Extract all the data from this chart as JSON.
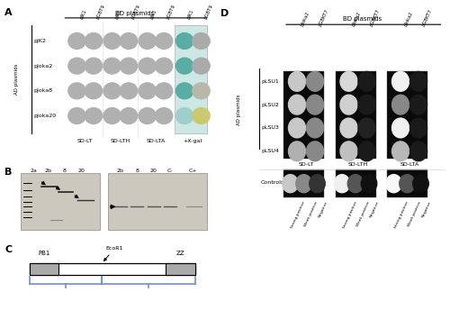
{
  "fig_width": 5.0,
  "fig_height": 3.55,
  "bg_color": "#ffffff",
  "panel_A": {
    "label": "A",
    "bd_label": "BD plasmids",
    "bd_cols": [
      "pJK1",
      "pGBT9",
      "pJK1",
      "pGBT9",
      "pJK1",
      "pGBT9",
      "pJK1",
      "pGBT9"
    ],
    "ad_label": "AD plasmids",
    "ad_rows": [
      "pJK2",
      "pJoka2",
      "pJoka8",
      "pJoka20"
    ],
    "conditions": [
      "SD-LT",
      "SD-LTH",
      "SD-LTA",
      "+X-gal"
    ],
    "dot_color_normal": "#b0b0b0",
    "xgal_bg": "#cde8e4",
    "xgal_col1_colors": [
      "#5aada4",
      "#5aada4",
      "#5aada4",
      "#9fcfca"
    ],
    "xgal_col2_colors": [
      "#aaaaaa",
      "#aaaaaa",
      "#b8b8a8",
      "#ccc870"
    ]
  },
  "panel_B": {
    "label": "B",
    "left_lanes": [
      "2a",
      "2b",
      "8",
      "20"
    ],
    "right_lanes": [
      "2b",
      "8",
      "20",
      "C-",
      "C+"
    ],
    "left_bg": "#cdc8be",
    "right_bg": "#cdc8be"
  },
  "panel_C": {
    "label": "C",
    "pb1_label": "PB1",
    "zz_label": "ZZ",
    "ecor1_label": "EcoR1",
    "domain_color": "#aaaaaa",
    "brace_color": "#7090c8"
  },
  "panel_D": {
    "label": "D",
    "bd_label": "BD plasmids",
    "bd_cols": [
      "pJoka2",
      "pGBKT7",
      "pJoka2",
      "pGBKT7",
      "pJoka2",
      "pGBKT7"
    ],
    "ad_label": "AD plasmids",
    "ad_rows": [
      "pLSU1",
      "pLSU2",
      "pLSU3",
      "pLSU4"
    ],
    "conditions": [
      "SD-LT",
      "SD-LTH",
      "SD-LTA"
    ],
    "controls_label": "Controls",
    "control_labels": [
      "Strong positive",
      "Weak positive",
      "Negative",
      "Strong positive",
      "Weak positive",
      "Negative",
      "Strong positive",
      "Weak positive",
      "Negative"
    ],
    "img_bg": "#0a0a0a",
    "lt_dots": [
      [
        "#c8c8c8",
        "#888888"
      ],
      [
        "#c8c8c8",
        "#888888"
      ],
      [
        "#c8c8c8",
        "#888888"
      ],
      [
        "#b0b0b0",
        "#888888"
      ]
    ],
    "lth_dots": [
      [
        "#d8d8d8",
        "#1a1a1a"
      ],
      [
        "#d0d0d0",
        "#1a1a1a"
      ],
      [
        "#d0d0d0",
        "#222222"
      ],
      [
        "#c0c0c0",
        "#1a1a1a"
      ]
    ],
    "lta_dots": [
      [
        "#f0f0f0",
        "#1a1a1a"
      ],
      [
        "#888888",
        "#1a1a1a"
      ],
      [
        "#f0f0f0",
        "#1a1a1a"
      ],
      [
        "#b8b8b8",
        "#1a1a1a"
      ]
    ],
    "ctrl_lt_dots": [
      "#c8c8c8",
      "#888888",
      "#333333"
    ],
    "ctrl_lth_dots": [
      "#f0f0f0",
      "#555555",
      "#111111"
    ],
    "ctrl_lta_dots": [
      "#f8f8f8",
      "#555555",
      "#111111"
    ]
  }
}
